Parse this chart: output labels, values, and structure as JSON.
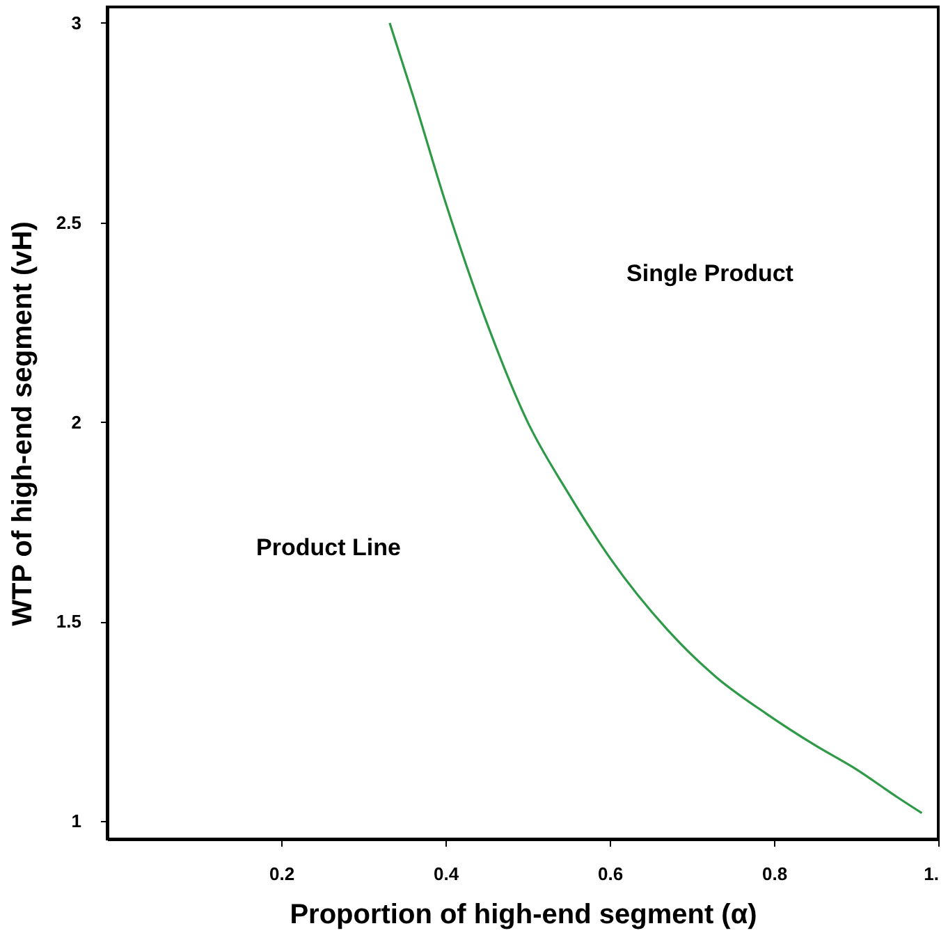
{
  "chart_data": {
    "type": "line",
    "xlabel": "Proportion of high-end segment (α)",
    "ylabel": "WTP of high-end segment (vH)",
    "xlim": [
      -0.012,
      1
    ],
    "ylim": [
      0.955,
      3.04
    ],
    "xticks": [
      0.2,
      0.4,
      0.6,
      0.8,
      {
        "value": 1,
        "label": "1."
      }
    ],
    "yticks": [
      1,
      1.5,
      2,
      2.5,
      3
    ],
    "series": [
      {
        "color": "#2e9a48",
        "x": [
          0.332,
          0.36,
          0.4,
          0.45,
          0.5,
          0.55,
          0.6,
          0.67,
          0.73,
          0.79,
          0.85,
          0.9,
          0.95,
          0.98
        ],
        "values": [
          3.0,
          2.82,
          2.55,
          2.25,
          2.0,
          1.82,
          1.66,
          1.48,
          1.36,
          1.27,
          1.19,
          1.13,
          1.06,
          1.02
        ]
      }
    ],
    "annotations": [
      "Single Product",
      "Product Line"
    ],
    "grid": false,
    "marker": "none",
    "line_style": "solid"
  }
}
